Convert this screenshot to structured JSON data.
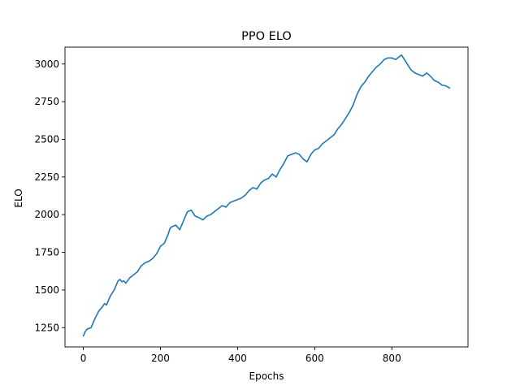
{
  "chart_data": {
    "type": "line",
    "title": "PPO ELO",
    "xlabel": "Epochs",
    "ylabel": "ELO",
    "xlim": [
      -47.5,
      997.5
    ],
    "ylim": [
      1122,
      3112
    ],
    "xticks": [
      0,
      200,
      400,
      600,
      800
    ],
    "yticks": [
      1250,
      1500,
      1750,
      2000,
      2250,
      2500,
      2750,
      3000
    ],
    "grid": false,
    "legend": "none",
    "series": [
      {
        "color": "#1f77b4",
        "x": [
          0,
          5,
          10,
          20,
          30,
          40,
          50,
          55,
          60,
          70,
          80,
          90,
          95,
          100,
          105,
          110,
          120,
          130,
          140,
          150,
          160,
          170,
          180,
          190,
          200,
          210,
          220,
          225,
          230,
          240,
          250,
          260,
          270,
          280,
          285,
          290,
          300,
          310,
          320,
          330,
          340,
          350,
          360,
          370,
          380,
          390,
          400,
          410,
          420,
          430,
          440,
          450,
          460,
          470,
          480,
          490,
          500,
          510,
          520,
          530,
          540,
          550,
          560,
          570,
          580,
          590,
          600,
          610,
          620,
          630,
          640,
          650,
          660,
          670,
          680,
          690,
          700,
          710,
          720,
          730,
          740,
          750,
          760,
          770,
          780,
          790,
          800,
          810,
          820,
          825,
          830,
          840,
          850,
          860,
          870,
          880,
          890,
          900,
          910,
          920,
          930,
          940,
          950
        ],
        "y": [
          1195,
          1225,
          1240,
          1250,
          1310,
          1360,
          1390,
          1410,
          1400,
          1460,
          1500,
          1560,
          1570,
          1555,
          1560,
          1545,
          1580,
          1600,
          1620,
          1660,
          1680,
          1690,
          1710,
          1740,
          1790,
          1810,
          1870,
          1910,
          1920,
          1930,
          1900,
          1960,
          2020,
          2030,
          2010,
          1990,
          1980,
          1965,
          1990,
          2000,
          2020,
          2040,
          2060,
          2050,
          2080,
          2090,
          2100,
          2110,
          2130,
          2160,
          2180,
          2170,
          2210,
          2230,
          2240,
          2270,
          2250,
          2300,
          2340,
          2390,
          2400,
          2410,
          2400,
          2370,
          2350,
          2400,
          2430,
          2440,
          2470,
          2490,
          2510,
          2530,
          2570,
          2600,
          2640,
          2680,
          2730,
          2800,
          2850,
          2880,
          2920,
          2950,
          2980,
          3000,
          3030,
          3040,
          3040,
          3030,
          3050,
          3060,
          3040,
          3000,
          2960,
          2940,
          2930,
          2920,
          2940,
          2920,
          2890,
          2880,
          2860,
          2855,
          2840
        ]
      }
    ]
  }
}
